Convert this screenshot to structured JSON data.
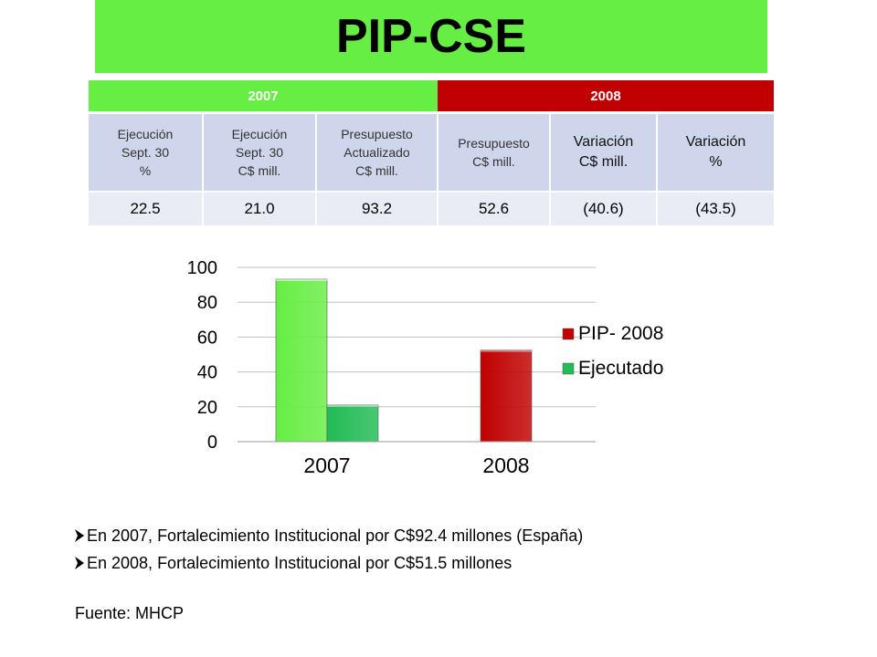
{
  "title": "PIP-CSE",
  "table": {
    "year_headers": [
      {
        "label": "2007",
        "color": "#66ee44"
      },
      {
        "label": "2008",
        "color": "#c00000"
      }
    ],
    "columns": [
      "Ejecución\nSept. 30\n%",
      "Ejecución\nSept. 30\nC$ mill.",
      "Presupuesto\nActualizado\nC$ mill.",
      "Presupuesto\nC$ mill.",
      "Variación\nC$ mill.",
      "Variación\n%"
    ],
    "values": [
      "22.5",
      "21.0",
      "93.2",
      "52.6",
      "(40.6)",
      "(43.5)"
    ]
  },
  "chart_data": {
    "type": "bar",
    "categories": [
      "2007",
      "2008"
    ],
    "series": [
      {
        "name": "PIP- 2008",
        "values": [
          93.2,
          52.6
        ],
        "colors": [
          "#66ee44",
          "#c00000"
        ]
      },
      {
        "name": "Ejecutado",
        "values": [
          21.0,
          null
        ],
        "color": "#22bb55"
      }
    ],
    "legend": [
      {
        "name": "PIP- 2008",
        "color": "#c00000"
      },
      {
        "name": "Ejecutado",
        "color": "#22bb55"
      }
    ],
    "ylim": [
      0,
      100
    ],
    "yticks": [
      0,
      20,
      40,
      60,
      80,
      100
    ],
    "grid": true,
    "legend_position": "right"
  },
  "bullets": [
    "En 2007, Fortalecimiento Institucional por C$92.4 millones (España)",
    "En 2008, Fortalecimiento Institucional por C$51.5 millones"
  ],
  "source": "Fuente: MHCP"
}
